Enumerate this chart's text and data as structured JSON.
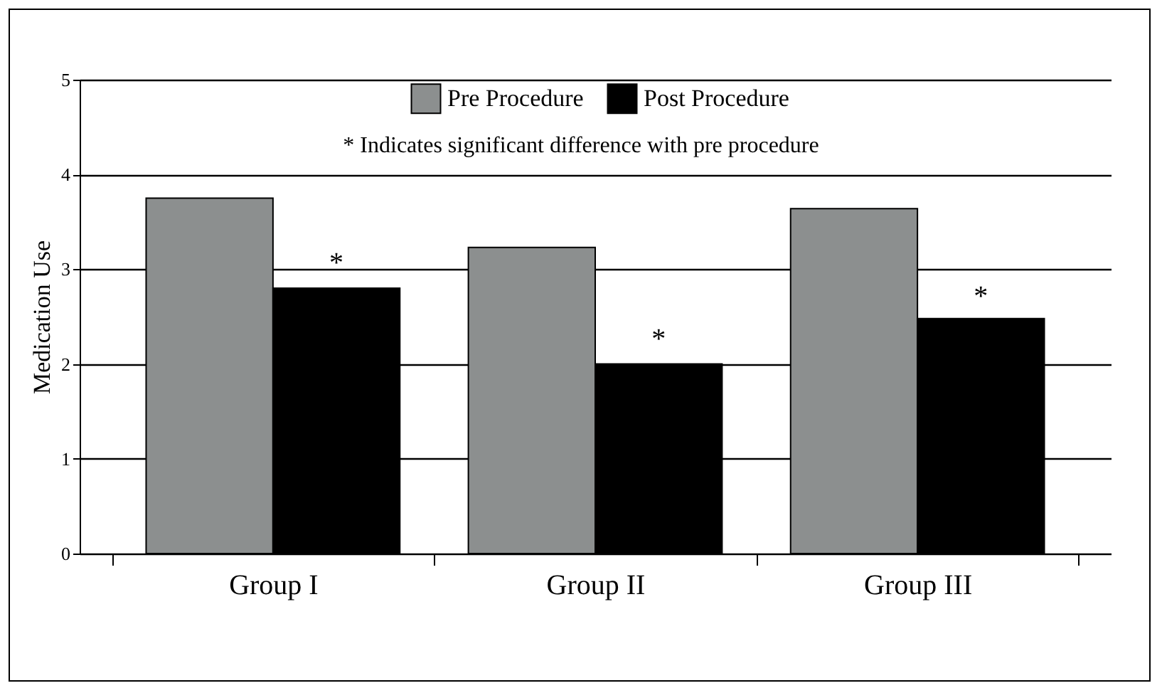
{
  "chart_data": {
    "type": "bar",
    "ylabel": "Medication Use",
    "categories": [
      "Group I",
      "Group II",
      "Group III"
    ],
    "series": [
      {
        "name": "Pre Procedure",
        "color": "#8c8f8f",
        "values": [
          3.75,
          3.23,
          3.64
        ]
      },
      {
        "name": "Post Procedure",
        "color": "#000000",
        "values": [
          2.8,
          2.0,
          2.48
        ]
      }
    ],
    "ylim": [
      0,
      5
    ],
    "yticks": [
      0,
      1,
      2,
      3,
      4,
      5
    ],
    "grid": "y",
    "legend": "top",
    "annotations": [
      "* Indicates significant difference with pre procedure",
      {
        "text": "*",
        "x": "Group I",
        "y": 3.15
      },
      {
        "text": "*",
        "x": "Group II",
        "y": 2.35
      },
      {
        "text": "*",
        "x": "Group III",
        "y": 2.8
      }
    ]
  }
}
